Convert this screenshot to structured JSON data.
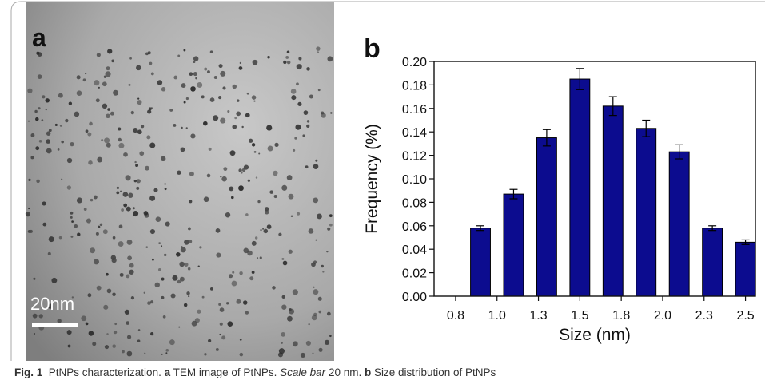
{
  "panel_labels": [
    "a",
    "b"
  ],
  "scale_bar_label": "20nm",
  "caption": [
    "Fig. 1",
    "  PtNPs characterization. ",
    "a",
    " TEM image of PtNPs. ",
    "Scale bar",
    " 20 nm. ",
    "b",
    " Size distribution of PtNPs"
  ],
  "chart_data": {
    "type": "bar",
    "x_label": "Size (nm)",
    "y_label": "Frequency (%)",
    "x": [
      0.9,
      1.1,
      1.3,
      1.5,
      1.7,
      1.9,
      2.1,
      2.3,
      2.5
    ],
    "values": [
      0.058,
      0.087,
      0.135,
      0.185,
      0.162,
      0.143,
      0.123,
      0.058,
      0.046
    ],
    "errors": [
      0.002,
      0.004,
      0.007,
      0.009,
      0.008,
      0.007,
      0.006,
      0.002,
      0.002
    ],
    "color": "#0c0c8f",
    "xlim": [
      0.62,
      2.56
    ],
    "ylim": [
      0,
      0.2
    ],
    "xticks": [
      {
        "value": 0.75,
        "label": "0.8"
      },
      {
        "value": 1.0,
        "label": "1.0"
      },
      {
        "value": 1.25,
        "label": "1.3"
      },
      {
        "value": 1.5,
        "label": "1.5"
      },
      {
        "value": 1.75,
        "label": "1.8"
      },
      {
        "value": 2.0,
        "label": "2.0"
      },
      {
        "value": 2.25,
        "label": "2.3"
      },
      {
        "value": 2.5,
        "label": "2.5"
      }
    ],
    "yticks": [
      {
        "value": 0,
        "label": "0.00"
      },
      {
        "value": 0.02,
        "label": "0.02"
      },
      {
        "value": 0.04,
        "label": "0.04"
      },
      {
        "value": 0.06,
        "label": "0.06"
      },
      {
        "value": 0.08,
        "label": "0.08"
      },
      {
        "value": 0.1,
        "label": "0.10"
      },
      {
        "value": 0.12,
        "label": "0.12"
      },
      {
        "value": 0.14,
        "label": "0.14"
      },
      {
        "value": 0.16,
        "label": "0.16"
      },
      {
        "value": 0.18,
        "label": "0.18"
      },
      {
        "value": 0.2,
        "label": "0.20"
      }
    ]
  }
}
